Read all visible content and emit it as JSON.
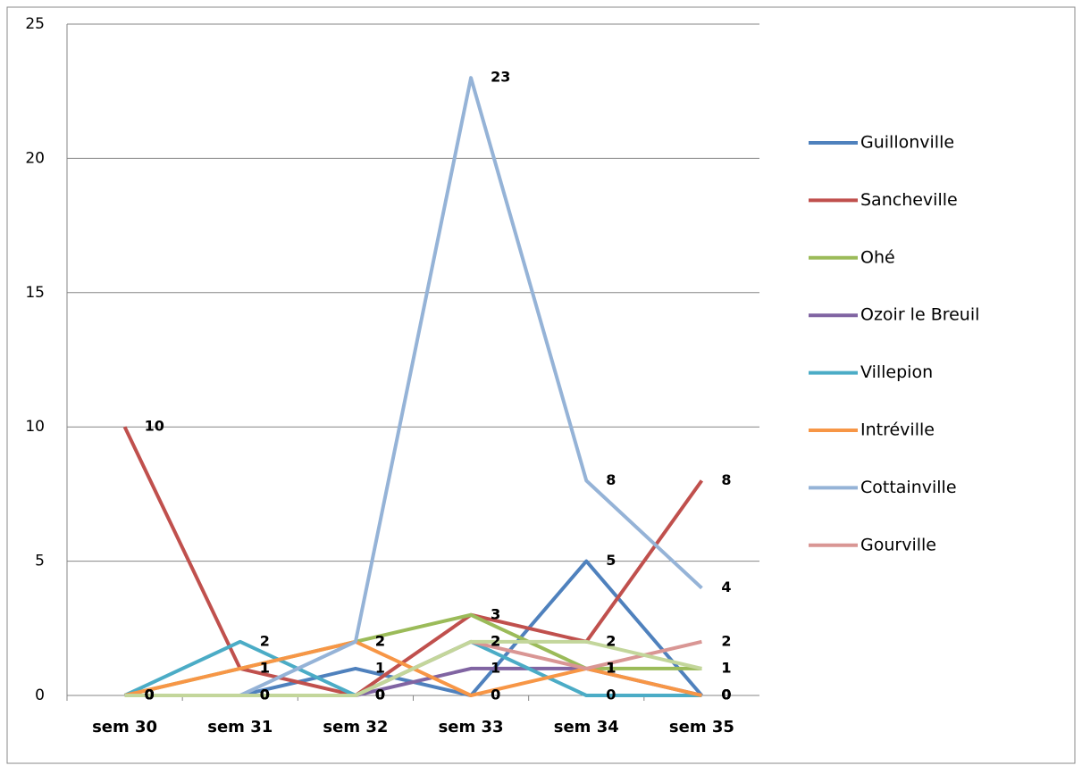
{
  "chart_data": {
    "type": "line",
    "categories": [
      "sem 30",
      "sem 31",
      "sem 32",
      "sem 33",
      "sem 34",
      "sem 35"
    ],
    "ylim": [
      0,
      25
    ],
    "yticks": [
      0,
      5,
      10,
      15,
      20,
      25
    ],
    "grid": true,
    "legend": "right",
    "series": [
      {
        "name": "Guillonville",
        "color": "#4F81BD",
        "values": [
          0,
          0,
          1,
          0,
          5,
          0
        ]
      },
      {
        "name": "Sancheville",
        "color": "#C0504D",
        "values": [
          10,
          1,
          0,
          3,
          2,
          8
        ]
      },
      {
        "name": "Ohé",
        "color": "#9BBB59",
        "values": [
          0,
          1,
          2,
          3,
          1,
          1
        ]
      },
      {
        "name": "Ozoir le Breuil",
        "color": "#8064A2",
        "values": [
          0,
          0,
          0,
          1,
          1,
          0
        ]
      },
      {
        "name": "Villepion",
        "color": "#4BACC6",
        "values": [
          0,
          2,
          0,
          2,
          0,
          0
        ]
      },
      {
        "name": "Intréville",
        "color": "#F79646",
        "values": [
          0,
          1,
          2,
          0,
          1,
          0
        ]
      },
      {
        "name": "Cottainville",
        "color": "#95B3D7",
        "values": [
          0,
          0,
          2,
          23,
          8,
          4
        ]
      },
      {
        "name": "Gourville",
        "color": "#D99694",
        "values": [
          0,
          0,
          0,
          2,
          1,
          2
        ]
      },
      {
        "color": "#C3D69B",
        "values": [
          0,
          0,
          0,
          2,
          2,
          1
        ]
      }
    ]
  }
}
